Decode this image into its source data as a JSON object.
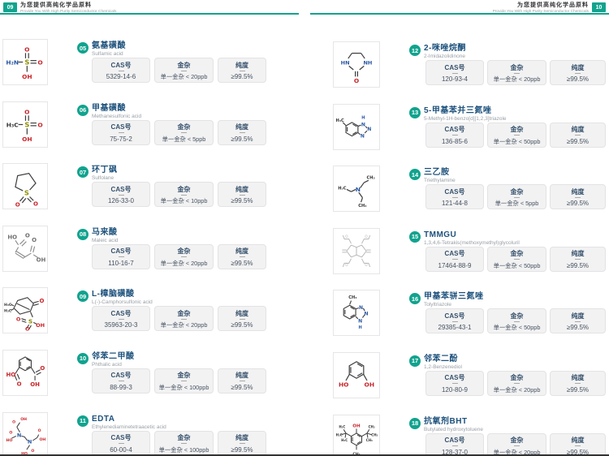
{
  "header": {
    "left": {
      "page_num": "09",
      "title_cn": "为您提供高纯化学品原料",
      "title_en": "Provide You With High Purity Semiconductor Chemicals"
    },
    "right": {
      "page_num": "10",
      "title_cn": "为您提供高纯化学品原料",
      "title_en": "Provide You With High Purity Semiconductor Chemicals"
    }
  },
  "labels": {
    "cas": "CAS号",
    "metal": "金杂",
    "purity": "纯度"
  },
  "colors": {
    "accent_teal": "#11a38e",
    "name_navy": "#1d517c",
    "box_header_navy": "#35506b",
    "atom_red": "#c9252b",
    "atom_blue": "#2857a4",
    "atom_sulfur": "#8f8f00"
  },
  "left_items": [
    {
      "num": "05",
      "name_cn": "氨基磺酸",
      "name_en": "Sulfamic acid",
      "cas": "5329-14-6",
      "metal": "单一金杂 < 20ppb",
      "purity": "≥99.5%",
      "structure": "sulfamic-acid"
    },
    {
      "num": "06",
      "name_cn": "甲基磺酸",
      "name_en": "Methanesulfonic acid",
      "cas": "75-75-2",
      "metal": "单一金杂 < 5ppb",
      "purity": "≥99.5%",
      "structure": "methanesulfonic-acid"
    },
    {
      "num": "07",
      "name_cn": "环丁砜",
      "name_en": "Sulfolane",
      "cas": "126-33-0",
      "metal": "单一金杂 < 10ppb",
      "purity": "≥99.5%",
      "structure": "sulfolane"
    },
    {
      "num": "08",
      "name_cn": "马来酸",
      "name_en": "Maleic acid",
      "cas": "110-16-7",
      "metal": "单一金杂 < 20ppb",
      "purity": "≥99.5%",
      "structure": "maleic-acid"
    },
    {
      "num": "09",
      "name_cn": "L-樟脑磺酸",
      "name_en": "L(-)-Camphorsulfonic acid",
      "cas": "35963-20-3",
      "metal": "单一金杂 < 20ppb",
      "purity": "≥99.5%",
      "structure": "camphorsulfonic-acid"
    },
    {
      "num": "10",
      "name_cn": "邻苯二甲酸",
      "name_en": "Phthalic acid",
      "cas": "88-99-3",
      "metal": "单一金杂 < 100ppb",
      "purity": "≥99.5%",
      "structure": "phthalic-acid"
    },
    {
      "num": "11",
      "name_cn": "EDTA",
      "name_en": "Ethylenediaminetetraacetic acid",
      "cas": "60-00-4",
      "metal": "单一金杂 < 100ppb",
      "purity": "≥99.5%",
      "structure": "edta"
    }
  ],
  "right_items": [
    {
      "num": "12",
      "name_cn": "2-咪唑烷酮",
      "name_en": "2-Imidazolidinone",
      "cas": "120-93-4",
      "metal": "单一金杂 < 20ppb",
      "purity": "≥99.5%",
      "structure": "imidazolidinone"
    },
    {
      "num": "13",
      "name_cn": "5-甲基苯并三氮唑",
      "name_en": "5-Methyl-1H-benzo[d][1,2,3]triazole",
      "cas": "136-85-6",
      "metal": "单一金杂 < 50ppb",
      "purity": "≥99.5%",
      "structure": "methylbenzotriazole"
    },
    {
      "num": "14",
      "name_cn": "三乙胺",
      "name_en": "Triethylamine",
      "cas": "121-44-8",
      "metal": "单一金杂 < 5ppb",
      "purity": "≥99.5%",
      "structure": "triethylamine"
    },
    {
      "num": "15",
      "name_cn": "TMMGU",
      "name_en": "1,3,4,6-Tetrakis(methoxymethyl)glycoluril",
      "cas": "17464-88-9",
      "metal": "单一金杂 < 50ppb",
      "purity": "≥99.5%",
      "structure": "tmmgu"
    },
    {
      "num": "16",
      "name_cn": "甲基苯骈三氮唑",
      "name_en": "Tolyltriazole",
      "cas": "29385-43-1",
      "metal": "单一金杂 < 50ppb",
      "purity": "≥99.5%",
      "structure": "tolyltriazole"
    },
    {
      "num": "17",
      "name_cn": "邻苯二酚",
      "name_en": "1,2-Benzenediol",
      "cas": "120-80-9",
      "metal": "单一金杂 < 20ppb",
      "purity": "≥99.5%",
      "structure": "benzenediol"
    },
    {
      "num": "18",
      "name_cn": "抗氧剂BHT",
      "name_en": "Butylated hydroxytoluene",
      "cas": "128-37-0",
      "metal": "单一金杂 < 20ppb",
      "purity": "≥99.5%",
      "structure": "bht"
    }
  ]
}
